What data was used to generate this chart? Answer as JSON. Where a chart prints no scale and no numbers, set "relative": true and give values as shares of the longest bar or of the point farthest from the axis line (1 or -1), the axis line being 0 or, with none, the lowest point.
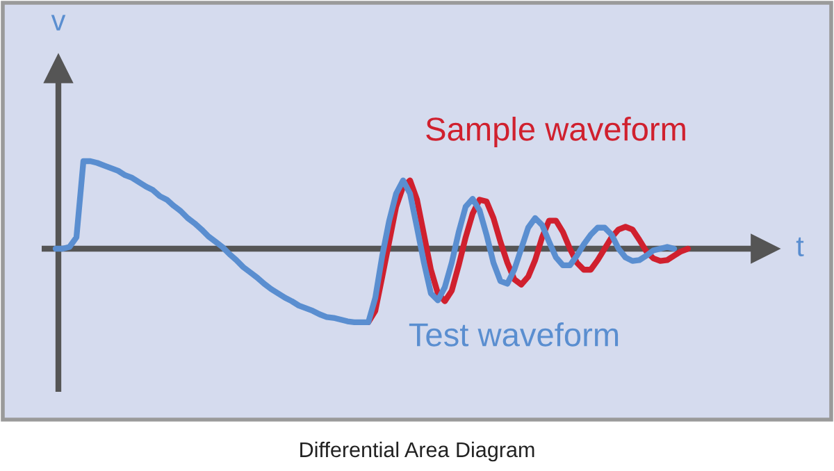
{
  "chart_data": {
    "type": "line",
    "relative": true,
    "xlabel": "t",
    "ylabel": "v",
    "annotations": [
      "Differential Area Diagram"
    ],
    "categories": [
      null,
      null,
      null,
      null,
      null,
      null,
      null,
      null,
      null,
      null,
      null,
      null,
      null,
      null,
      null,
      null,
      null,
      null,
      null,
      null,
      null,
      null,
      null,
      null,
      null,
      null,
      null,
      null,
      null,
      null,
      null,
      null,
      null,
      null,
      null,
      null,
      null,
      null,
      null,
      null,
      null,
      null,
      null,
      null,
      null,
      null,
      null,
      null,
      null,
      null,
      null,
      null,
      null,
      null,
      null,
      null,
      null,
      null,
      null,
      null,
      null,
      null,
      null,
      null,
      null,
      null,
      null,
      null,
      null,
      null,
      null,
      null,
      null,
      null,
      null,
      null,
      null,
      null,
      null,
      null,
      null,
      null,
      null,
      null,
      null,
      null,
      null,
      null,
      null,
      null,
      null,
      null,
      null
    ],
    "series": [
      {
        "name": "Sample waveform",
        "color": "#d0202e",
        "values": [
          null,
          null,
          null,
          null,
          null,
          null,
          null,
          null,
          null,
          null,
          null,
          null,
          null,
          null,
          null,
          null,
          null,
          null,
          null,
          null,
          null,
          null,
          null,
          null,
          null,
          null,
          null,
          null,
          null,
          null,
          null,
          null,
          null,
          null,
          null,
          null,
          null,
          null,
          null,
          null,
          null,
          null,
          null,
          null,
          null,
          -0.84,
          -0.71,
          -0.32,
          0.08,
          0.48,
          0.71,
          0.78,
          0.56,
          0.16,
          -0.24,
          -0.51,
          -0.6,
          -0.48,
          -0.19,
          0.13,
          0.4,
          0.56,
          0.54,
          0.35,
          0.08,
          -0.16,
          -0.35,
          -0.41,
          -0.32,
          -0.13,
          0.13,
          0.32,
          0.32,
          0.19,
          0,
          -0.16,
          -0.24,
          -0.24,
          -0.13,
          0,
          0.13,
          0.22,
          0.25,
          0.22,
          0.1,
          -0.03,
          -0.11,
          -0.14,
          -0.13,
          -0.08,
          -0.03,
          0,
          null
        ]
      },
      {
        "name": "Test waveform",
        "color": "#5a8ed0",
        "values": [
          0,
          0,
          0.02,
          0.13,
          1,
          1,
          0.98,
          0.95,
          0.92,
          0.89,
          0.84,
          0.81,
          0.76,
          0.71,
          0.67,
          0.6,
          0.56,
          0.49,
          0.43,
          0.35,
          0.29,
          0.22,
          0.14,
          0.08,
          0.02,
          -0.06,
          -0.13,
          -0.21,
          -0.27,
          -0.33,
          -0.4,
          -0.46,
          -0.51,
          -0.56,
          -0.6,
          -0.65,
          -0.68,
          -0.71,
          -0.75,
          -0.78,
          -0.79,
          -0.81,
          -0.83,
          -0.84,
          -0.84,
          -0.84,
          -0.56,
          -0.08,
          0.32,
          0.63,
          0.78,
          0.63,
          0.24,
          -0.16,
          -0.51,
          -0.59,
          -0.44,
          -0.16,
          0.19,
          0.48,
          0.57,
          0.44,
          0.16,
          -0.16,
          -0.37,
          -0.4,
          -0.24,
          0,
          0.24,
          0.35,
          0.27,
          0.08,
          -0.1,
          -0.19,
          -0.19,
          -0.08,
          0.05,
          0.16,
          0.24,
          0.24,
          0.16,
          0,
          -0.1,
          -0.14,
          -0.13,
          -0.08,
          -0.02,
          0,
          0.02,
          0,
          null,
          null,
          null
        ]
      }
    ],
    "legend": false,
    "grid": false
  }
}
